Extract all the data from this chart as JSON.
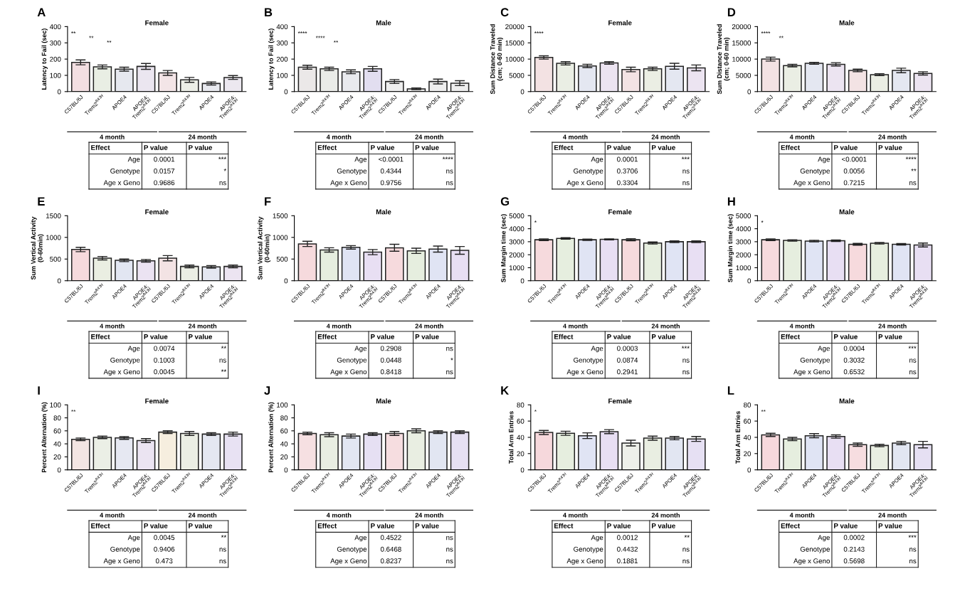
{
  "chart_data": [
    {
      "type": "bar",
      "title": "A",
      "subtitle": "Female",
      "ylabel": "Latency to Fail (sec)",
      "categories": [
        "C57BL/6J",
        "Trem2$^{R47H}$",
        "APOE4",
        "APOE4;\nTrem2$^{R47H}$",
        "C57BL/6J",
        "Trem2$^{R47H}$",
        "APOE4",
        "APOE4;\nTrem2$^{R47H}$"
      ],
      "values": [
        180,
        152,
        138,
        155,
        115,
        72,
        50,
        87
      ],
      "errors": [
        15,
        12,
        12,
        18,
        15,
        15,
        10,
        12
      ],
      "colors": [
        "#f3dfe2",
        "#e9eee4",
        "#e6e8ef",
        "#ebe6f0",
        "#f3e5e7",
        "#eceee6",
        "#e8e9ef",
        "#ece8f0"
      ],
      "ylim": [
        0,
        400
      ],
      "yticks": [
        0,
        100,
        200,
        300,
        400
      ],
      "grid": false,
      "annotations": [
        "4 month",
        "24 month",
        "Effect",
        "P value",
        "P value",
        "Age",
        "0.0001",
        "***",
        "Genotype",
        "0.0157",
        "*",
        "Age x Geno",
        "0.9686",
        "ns",
        "**",
        "**",
        "**"
      ]
    },
    {
      "type": "bar",
      "title": "B",
      "subtitle": "Male",
      "ylabel": "Latency to Fail (sec)",
      "categories": [
        "C57BL/6J",
        "Trem2$^{R47H}$",
        "APOE4",
        "APOE4;\nTrem2$^{R47H}$",
        "C57BL/6J",
        "Trem2$^{R47H}$",
        "APOE4",
        "APOE4;\nTrem2$^{R47H}$"
      ],
      "values": [
        150,
        140,
        122,
        140,
        62,
        17,
        62,
        52
      ],
      "errors": [
        12,
        10,
        12,
        15,
        12,
        5,
        15,
        15
      ],
      "colors": [
        "#ebe8e8",
        "#eaece8",
        "#e9eaee",
        "#e2def0",
        "#eeeeee",
        "#eeeeee",
        "#eeeeee",
        "#eeeeee"
      ],
      "ylim": [
        0,
        400
      ],
      "yticks": [
        0,
        100,
        200,
        300,
        400
      ],
      "grid": false,
      "annotations": [
        "4 month",
        "24 month",
        "Effect",
        "P value",
        "P value",
        "Age",
        "<0.0001",
        "****",
        "Genotype",
        "0.4344",
        "ns",
        "Age x Geno",
        "0.9756",
        "ns",
        "****",
        "****",
        "**"
      ]
    },
    {
      "type": "bar",
      "title": "C",
      "subtitle": "Female",
      "ylabel": "Sum Distance Traveled\n(cm; 0-60 min)",
      "categories": [
        "C57BL/6J",
        "Trem2$^{R47H}$",
        "APOE4",
        "APOE4;\nTrem2$^{R47H}$",
        "C57BL/6J",
        "Trem2$^{R47H}$",
        "APOE4",
        "APOE4;\nTrem2$^{R47H}$"
      ],
      "values": [
        10500,
        8700,
        7900,
        8800,
        6800,
        7000,
        7800,
        7300
      ],
      "errors": [
        500,
        500,
        500,
        400,
        700,
        500,
        900,
        900
      ],
      "colors": [
        "#f3e2e3",
        "#eaeee4",
        "#e4e7f1",
        "#ece4f1",
        "#f3e3e4",
        "#ebeee4",
        "#e4e7f1",
        "#ece4f1"
      ],
      "ylim": [
        0,
        20000
      ],
      "yticks": [
        0,
        5000,
        10000,
        15000,
        20000
      ],
      "grid": false,
      "annotations": [
        "4 month",
        "24 month",
        "Effect",
        "P value",
        "P value",
        "Age",
        "0.0001",
        "***",
        "Genotype",
        "0.3706",
        "ns",
        "Age x Geno",
        "0.3304",
        "ns",
        "****"
      ]
    },
    {
      "type": "bar",
      "title": "D",
      "subtitle": "Male",
      "ylabel": "Sum Distance Traveled\n(cm; 0-60 min)",
      "categories": [
        "C57BL/6J",
        "Trem2$^{R47H}$",
        "APOE4",
        "APOE4;\nTrem2$^{R47H}$",
        "C57BL/6J",
        "Trem2$^{R47H}$",
        "APOE4",
        "APOE4;\nTrem2$^{R47H}$"
      ],
      "values": [
        10000,
        8000,
        8700,
        8400,
        6500,
        5200,
        6500,
        5600
      ],
      "errors": [
        600,
        400,
        300,
        500,
        400,
        300,
        700,
        500
      ],
      "colors": [
        "#f3e2e3",
        "#eaeee4",
        "#e4e7f1",
        "#ece4f1",
        "#f3e3e4",
        "#ebeee4",
        "#e4e7f1",
        "#ece4f1"
      ],
      "ylim": [
        0,
        20000
      ],
      "yticks": [
        0,
        5000,
        10000,
        15000,
        20000
      ],
      "grid": false,
      "annotations": [
        "4 month",
        "24 month",
        "Effect",
        "P value",
        "P value",
        "Age",
        "<0.0001",
        "****",
        "Genotype",
        "0.0056",
        "**",
        "Age x Geno",
        "0.7215",
        "ns",
        "****",
        "**"
      ]
    },
    {
      "type": "bar",
      "title": "E",
      "subtitle": "Female",
      "ylabel": "Sum Vertical Activity\n(0-60min)",
      "categories": [
        "C57BL/6J",
        "Trem2$^{R47H}$",
        "APOE4",
        "APOE4;\nTrem2$^{R47H}$",
        "C57BL/6J",
        "Trem2$^{R47H}$",
        "APOE4",
        "APOE4;\nTrem2$^{R47H}$"
      ],
      "values": [
        720,
        520,
        470,
        460,
        520,
        330,
        320,
        330
      ],
      "errors": [
        50,
        40,
        30,
        30,
        60,
        30,
        30,
        30
      ],
      "colors": [
        "#f6dadd",
        "#eaeee2",
        "#e2e6f2",
        "#ebe3f2",
        "#f3e3e4",
        "#ebeee4",
        "#e4e7f1",
        "#ece4f1"
      ],
      "ylim": [
        0,
        1500
      ],
      "yticks": [
        0,
        500,
        1000,
        1500
      ],
      "grid": false,
      "annotations": [
        "4 month",
        "24 month",
        "Effect",
        "P value",
        "P value",
        "Age",
        "0.0074",
        "**",
        "Genotype",
        "0.1003",
        "ns",
        "Age x Geno",
        "0.0045",
        "**"
      ]
    },
    {
      "type": "bar",
      "title": "F",
      "subtitle": "Male",
      "ylabel": "Sum Vertical Activity\n(0-60min)",
      "categories": [
        "C57BL/6J",
        "Trem2$^{R47H}$",
        "APOE4",
        "APOE4;\nTrem2$^{R47H}$",
        "C57BL/6J",
        "Trem2$^{R47H}$",
        "APOE4",
        "APOE4;\nTrem2$^{R47H}$"
      ],
      "values": [
        850,
        710,
        770,
        660,
        760,
        690,
        730,
        700
      ],
      "errors": [
        60,
        50,
        40,
        60,
        80,
        60,
        70,
        90
      ],
      "colors": [
        "#f6dadd",
        "#e6eedf",
        "#e0e4f4",
        "#e8dff3",
        "#f6dadd",
        "#e6eedf",
        "#e0e4f4",
        "#e8dff3"
      ],
      "ylim": [
        0,
        1500
      ],
      "yticks": [
        0,
        500,
        1000,
        1500
      ],
      "grid": false,
      "annotations": [
        "4 month",
        "24 month",
        "Effect",
        "P value",
        "P value",
        "Age",
        "0.2908",
        "ns",
        "Genotype",
        "0.0448",
        "*",
        "Age x Geno",
        "0.8418",
        "ns"
      ]
    },
    {
      "type": "bar",
      "title": "G",
      "subtitle": "Female",
      "ylabel": "Sum Margin time (sec)",
      "categories": [
        "C57BL/6J",
        "Trem2$^{R47H}$",
        "APOE4",
        "APOE4;\nTrem2$^{R47H}$",
        "C57BL/6J",
        "Trem2$^{R47H}$",
        "APOE4",
        "APOE4;\nTrem2$^{R47H}$"
      ],
      "values": [
        3150,
        3250,
        3150,
        3180,
        3150,
        2900,
        3000,
        3000
      ],
      "errors": [
        60,
        60,
        50,
        40,
        80,
        80,
        60,
        60
      ],
      "colors": [
        "#f6dadd",
        "#e6eedf",
        "#e0e4f4",
        "#e8dff3",
        "#f6dadd",
        "#e6eedf",
        "#e0e4f4",
        "#e8dff3"
      ],
      "ylim": [
        0,
        5000
      ],
      "yticks": [
        0,
        1000,
        2000,
        3000,
        4000,
        5000
      ],
      "grid": false,
      "annotations": [
        "4 month",
        "24 month",
        "Effect",
        "P value",
        "P value",
        "Age",
        "0.0003",
        "***",
        "Genotype",
        "0.0874",
        "ns",
        "Age x Geno",
        "0.2941",
        "ns",
        "*"
      ]
    },
    {
      "type": "bar",
      "title": "H",
      "subtitle": "Male",
      "ylabel": "Sum Margin time (sec)",
      "categories": [
        "C57BL/6J",
        "Trem2$^{R47H}$",
        "APOE4",
        "APOE4;\nTrem2$^{R47H}$",
        "C57BL/6J",
        "Trem2$^{R47H}$",
        "APOE4",
        "APOE4;\nTrem2$^{R47H}$"
      ],
      "values": [
        3150,
        3100,
        3050,
        3080,
        2800,
        2880,
        2800,
        2750
      ],
      "errors": [
        60,
        50,
        60,
        60,
        70,
        60,
        60,
        150
      ],
      "colors": [
        "#f6dadd",
        "#e6eedf",
        "#e0e4f4",
        "#e8dff3",
        "#f6dadd",
        "#e6eedf",
        "#e0e4f4",
        "#e8dff3"
      ],
      "ylim": [
        0,
        5000
      ],
      "yticks": [
        0,
        1000,
        2000,
        3000,
        4000,
        5000
      ],
      "grid": false,
      "annotations": [
        "4 month",
        "24 month",
        "Effect",
        "P value",
        "P value",
        "Age",
        "0.0004",
        "***",
        "Genotype",
        "0.3032",
        "ns",
        "Age x Geno",
        "0.6532",
        "ns",
        "*"
      ]
    },
    {
      "type": "bar",
      "title": "I",
      "subtitle": "Female",
      "ylabel": "Percent Alternation (%)",
      "categories": [
        "C57BL/6J",
        "Trem2$^{R47H}$",
        "APOE4",
        "APOE4;\nTrem2$^{R47H}$",
        "C57BL/6J",
        "Trem2$^{R47H}$",
        "APOE4",
        "APOE4;\nTrem2$^{R47H}$"
      ],
      "values": [
        47,
        50,
        49,
        45,
        58,
        56,
        55,
        55
      ],
      "errors": [
        2,
        2,
        2,
        3,
        2,
        3,
        2,
        3
      ],
      "colors": [
        "#f3e5e3",
        "#ebefe6",
        "#e6e8f2",
        "#ebe4f2",
        "#f6eedf",
        "#ebeee4",
        "#e4e7f1",
        "#e8e2f3"
      ],
      "ylim": [
        0,
        100
      ],
      "yticks": [
        0,
        20,
        40,
        60,
        80,
        100
      ],
      "grid": false,
      "annotations": [
        "4 month",
        "24 month",
        "Effect",
        "P value",
        "P value",
        "Age",
        "0.0045",
        "**",
        "Genotype",
        "0.9406",
        "ns",
        "Age x Geno",
        "0.473",
        "ns",
        "**"
      ]
    },
    {
      "type": "bar",
      "title": "J",
      "subtitle": "Male",
      "ylabel": "Percent Alternation (%)",
      "categories": [
        "C57BL/6J",
        "Trem2$^{R47H}$",
        "APOE4",
        "APOE4;\nTrem2$^{R47H}$",
        "C57BL/6J",
        "Trem2$^{R47H}$",
        "APOE4",
        "APOE4;\nTrem2$^{R47H}$"
      ],
      "values": [
        56,
        54,
        52,
        55,
        56,
        60,
        58,
        58
      ],
      "errors": [
        2,
        3,
        3,
        2,
        3,
        3,
        2,
        2
      ],
      "colors": [
        "#f6e0e2",
        "#e9eee2",
        "#e2e6f2",
        "#e6e0f3",
        "#f6dde0",
        "#e9eee2",
        "#e2e6f2",
        "#e6e0f3"
      ],
      "ylim": [
        0,
        100
      ],
      "yticks": [
        0,
        20,
        40,
        60,
        80,
        100
      ],
      "grid": false,
      "annotations": [
        "4 month",
        "24 month",
        "Effect",
        "P value",
        "P value",
        "Age",
        "0.4522",
        "ns",
        "Genotype",
        "0.6468",
        "ns",
        "Age x Geno",
        "0.8237",
        "ns"
      ]
    },
    {
      "type": "bar",
      "title": "K",
      "subtitle": "Female",
      "ylabel": "Total Arm Entries",
      "categories": [
        "C57BL/6J",
        "Trem2$^{R47H}$",
        "APOE4",
        "APOE4;\nTrem2$^{R47H}$",
        "C57BL/6J",
        "Trem2$^{R47H}$",
        "APOE4",
        "APOE4;\nTrem2$^{R47H}$"
      ],
      "values": [
        46,
        45,
        42,
        47,
        33,
        39,
        39,
        38
      ],
      "errors": [
        2.5,
        2.5,
        3.5,
        2.5,
        3.5,
        2.5,
        2,
        3
      ],
      "colors": [
        "#f6d8dc",
        "#e6eedf",
        "#e0e4f4",
        "#e8dff3",
        "#eef0ea",
        "#e9eee2",
        "#e2e6f2",
        "#e6e0f3"
      ],
      "ylim": [
        0,
        80
      ],
      "yticks": [
        0,
        20,
        40,
        60,
        80
      ],
      "grid": false,
      "annotations": [
        "4 month",
        "24 month",
        "Effect",
        "P value",
        "P value",
        "Age",
        "0.0012",
        "**",
        "Genotype",
        "0.4432",
        "ns",
        "Age x Geno",
        "0.1881",
        "ns",
        "*"
      ]
    },
    {
      "type": "bar",
      "title": "L",
      "subtitle": "Male",
      "ylabel": "Total Arm Entries",
      "categories": [
        "C57BL/6J",
        "Trem2$^{R47H}$",
        "APOE4",
        "APOE4;\nTrem2$^{R47H}$",
        "C57BL/6J",
        "Trem2$^{R47H}$",
        "APOE4",
        "APOE4;\nTrem2$^{R47H}$"
      ],
      "values": [
        43,
        38,
        42,
        41,
        31,
        30,
        33,
        31
      ],
      "errors": [
        2,
        2,
        2.5,
        2,
        2,
        1.5,
        2,
        4
      ],
      "colors": [
        "#f6d8dc",
        "#e6eedf",
        "#e0e4f4",
        "#e8dff3",
        "#f6dde0",
        "#e9eee2",
        "#e2e6f2",
        "#e6e0f3"
      ],
      "ylim": [
        0,
        80
      ],
      "yticks": [
        0,
        20,
        40,
        60,
        80
      ],
      "grid": false,
      "annotations": [
        "4 month",
        "24 month",
        "Effect",
        "P value",
        "P value",
        "Age",
        "0.0002",
        "***",
        "Genotype",
        "0.2143",
        "ns",
        "Age x Geno",
        "0.5698",
        "ns",
        "**"
      ]
    }
  ]
}
